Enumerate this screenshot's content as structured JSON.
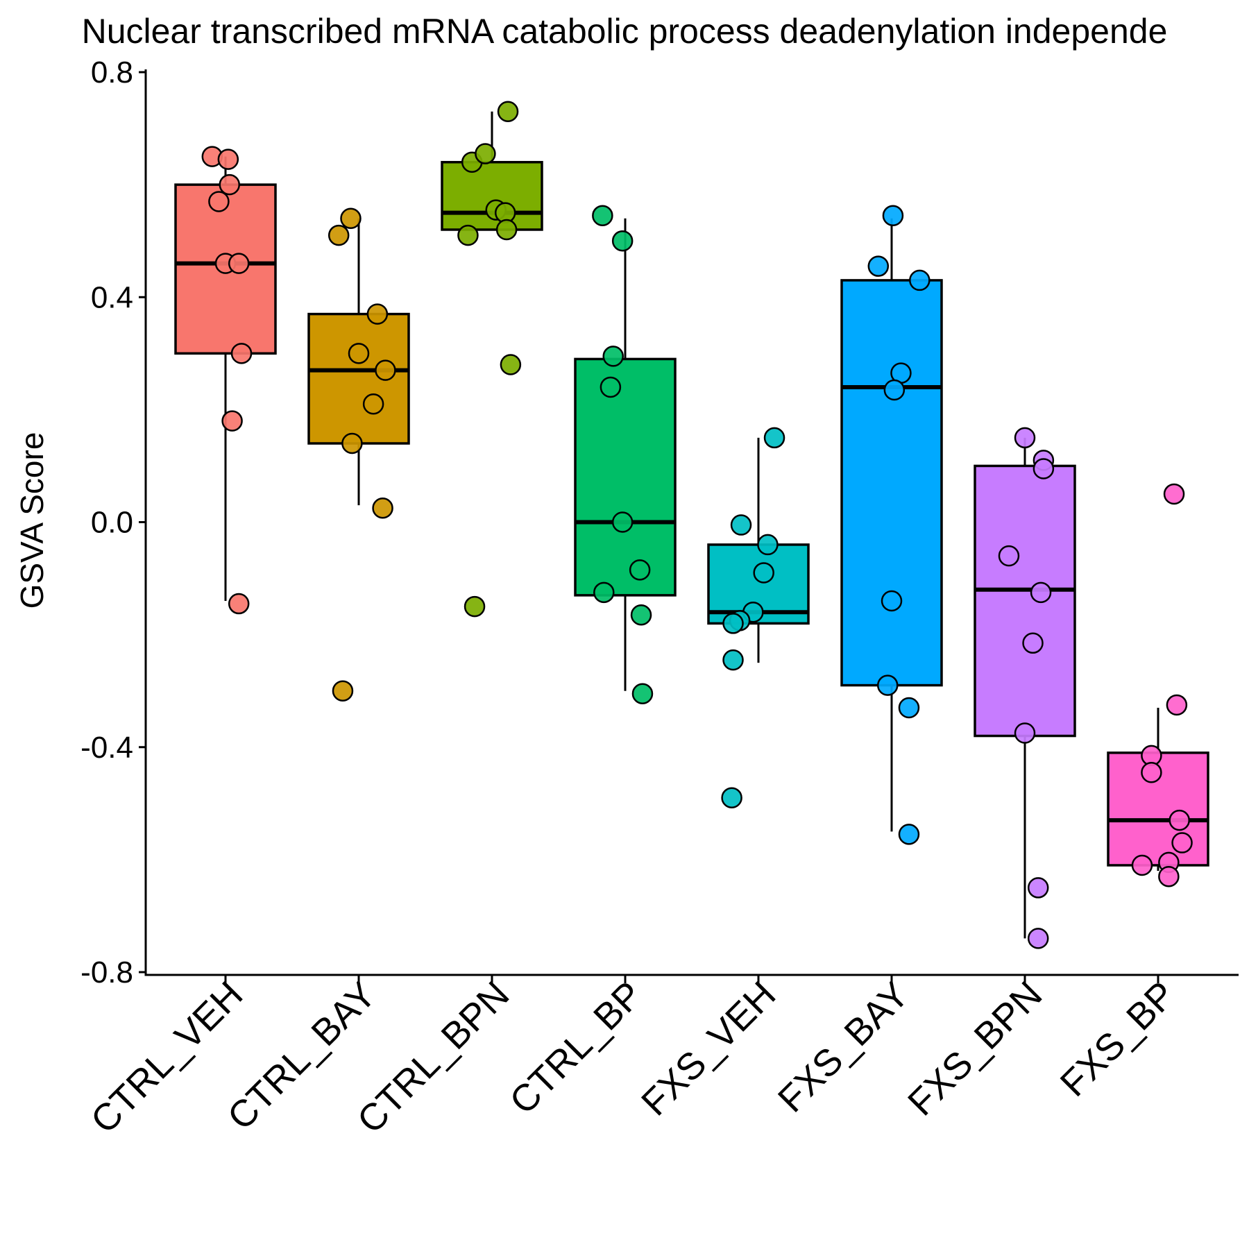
{
  "chart_data": {
    "type": "box",
    "title": "Nuclear transcribed mRNA catabolic process deadenylation independe",
    "xlabel": "",
    "ylabel": "GSVA Score",
    "ylim": [
      -0.8,
      0.8
    ],
    "yticks": [
      "0.8",
      "0.4",
      "0.0",
      "-0.4",
      "-0.8"
    ],
    "categories": [
      "CTRL_VEH",
      "CTRL_BAY",
      "CTRL_BPN",
      "CTRL_BP",
      "FXS_VEH",
      "FXS_BAY",
      "FXS_BPN",
      "FXS_BP"
    ],
    "colors": [
      "#F8766D",
      "#CD9600",
      "#7CAE00",
      "#00BE67",
      "#00BFC4",
      "#00A9FF",
      "#C77CFF",
      "#FF61CC"
    ],
    "boxes": [
      {
        "whisker_low": -0.14,
        "q1": 0.3,
        "median": 0.46,
        "q3": 0.6,
        "whisker_high": 0.65
      },
      {
        "whisker_low": 0.03,
        "q1": 0.14,
        "median": 0.27,
        "q3": 0.37,
        "whisker_high": 0.54
      },
      {
        "whisker_low": 0.52,
        "q1": 0.52,
        "median": 0.55,
        "q3": 0.64,
        "whisker_high": 0.73
      },
      {
        "whisker_low": -0.3,
        "q1": -0.13,
        "median": 0.0,
        "q3": 0.29,
        "whisker_high": 0.54
      },
      {
        "whisker_low": -0.25,
        "q1": -0.18,
        "median": -0.16,
        "q3": -0.04,
        "whisker_high": 0.15
      },
      {
        "whisker_low": -0.55,
        "q1": -0.29,
        "median": 0.24,
        "q3": 0.43,
        "whisker_high": 0.54
      },
      {
        "whisker_low": -0.74,
        "q1": -0.38,
        "median": -0.12,
        "q3": 0.1,
        "whisker_high": 0.15
      },
      {
        "whisker_low": -0.62,
        "q1": -0.61,
        "median": -0.53,
        "q3": -0.41,
        "whisker_high": -0.33
      }
    ],
    "points": [
      [
        {
          "j": -0.1,
          "y": 0.65
        },
        {
          "j": 0.02,
          "y": 0.645
        },
        {
          "j": 0.03,
          "y": 0.6
        },
        {
          "j": -0.05,
          "y": 0.57
        },
        {
          "j": 0.0,
          "y": 0.46
        },
        {
          "j": 0.1,
          "y": 0.46
        },
        {
          "j": 0.12,
          "y": 0.3
        },
        {
          "j": 0.05,
          "y": 0.18
        },
        {
          "j": 0.1,
          "y": -0.145
        }
      ],
      [
        {
          "j": -0.15,
          "y": 0.51
        },
        {
          "j": -0.06,
          "y": 0.54
        },
        {
          "j": 0.14,
          "y": 0.37
        },
        {
          "j": 0.0,
          "y": 0.3
        },
        {
          "j": 0.2,
          "y": 0.27
        },
        {
          "j": 0.11,
          "y": 0.21
        },
        {
          "j": -0.05,
          "y": 0.14
        },
        {
          "j": 0.18,
          "y": 0.025
        },
        {
          "j": -0.12,
          "y": -0.3
        }
      ],
      [
        {
          "j": 0.12,
          "y": 0.73
        },
        {
          "j": -0.15,
          "y": 0.64
        },
        {
          "j": -0.05,
          "y": 0.655
        },
        {
          "j": 0.03,
          "y": 0.555
        },
        {
          "j": 0.1,
          "y": 0.55
        },
        {
          "j": -0.18,
          "y": 0.51
        },
        {
          "j": 0.11,
          "y": 0.52
        },
        {
          "j": 0.14,
          "y": 0.28
        },
        {
          "j": -0.13,
          "y": -0.15
        }
      ],
      [
        {
          "j": -0.17,
          "y": 0.545
        },
        {
          "j": -0.02,
          "y": 0.5
        },
        {
          "j": -0.09,
          "y": 0.295
        },
        {
          "j": -0.11,
          "y": 0.24
        },
        {
          "j": -0.02,
          "y": 0.0
        },
        {
          "j": 0.11,
          "y": -0.085
        },
        {
          "j": -0.16,
          "y": -0.125
        },
        {
          "j": 0.12,
          "y": -0.165
        },
        {
          "j": 0.13,
          "y": -0.305
        }
      ],
      [
        {
          "j": 0.12,
          "y": 0.15
        },
        {
          "j": -0.13,
          "y": -0.005
        },
        {
          "j": 0.07,
          "y": -0.04
        },
        {
          "j": 0.04,
          "y": -0.09
        },
        {
          "j": -0.04,
          "y": -0.16
        },
        {
          "j": -0.14,
          "y": -0.175
        },
        {
          "j": -0.19,
          "y": -0.18
        },
        {
          "j": -0.19,
          "y": -0.245
        },
        {
          "j": -0.2,
          "y": -0.49
        }
      ],
      [
        {
          "j": 0.01,
          "y": 0.545
        },
        {
          "j": -0.1,
          "y": 0.455
        },
        {
          "j": 0.21,
          "y": 0.43
        },
        {
          "j": 0.07,
          "y": 0.265
        },
        {
          "j": 0.02,
          "y": 0.235
        },
        {
          "j": 0.0,
          "y": -0.14
        },
        {
          "j": -0.03,
          "y": -0.29
        },
        {
          "j": 0.13,
          "y": -0.33
        },
        {
          "j": 0.13,
          "y": -0.555
        }
      ],
      [
        {
          "j": 0.0,
          "y": 0.15
        },
        {
          "j": 0.14,
          "y": 0.11
        },
        {
          "j": 0.14,
          "y": 0.095
        },
        {
          "j": -0.12,
          "y": -0.06
        },
        {
          "j": 0.12,
          "y": -0.125
        },
        {
          "j": 0.06,
          "y": -0.215
        },
        {
          "j": 0.0,
          "y": -0.375
        },
        {
          "j": 0.1,
          "y": -0.65
        },
        {
          "j": 0.1,
          "y": -0.74
        }
      ],
      [
        {
          "j": 0.12,
          "y": 0.05
        },
        {
          "j": 0.14,
          "y": -0.325
        },
        {
          "j": -0.05,
          "y": -0.415
        },
        {
          "j": -0.05,
          "y": -0.445
        },
        {
          "j": 0.16,
          "y": -0.53
        },
        {
          "j": 0.18,
          "y": -0.57
        },
        {
          "j": -0.12,
          "y": -0.61
        },
        {
          "j": 0.08,
          "y": -0.605
        },
        {
          "j": 0.08,
          "y": -0.63
        }
      ]
    ]
  }
}
